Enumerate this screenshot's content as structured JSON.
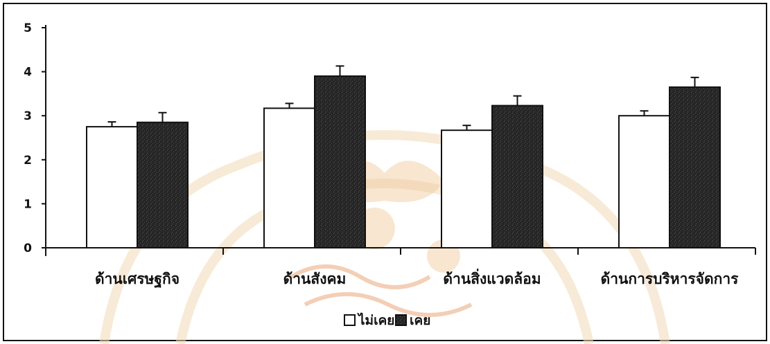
{
  "chart_data": {
    "type": "bar",
    "categories": [
      "ด้านเศรษฐกิจ",
      "ด้านสังคม",
      "ด้านสิ่งแวดล้อม",
      "ด้านการบริหารจัดการ"
    ],
    "series": [
      {
        "name": "ไม่เคย",
        "values": [
          2.75,
          3.17,
          2.67,
          3.0
        ],
        "errors": [
          0.11,
          0.11,
          0.11,
          0.11
        ],
        "fill": "#ffffff"
      },
      {
        "name": "เคย",
        "values": [
          2.85,
          3.9,
          3.23,
          3.65
        ],
        "errors": [
          0.22,
          0.23,
          0.22,
          0.22
        ],
        "fill": "#2b2b2b"
      }
    ],
    "yticks": [
      0,
      1,
      2,
      3,
      4,
      5
    ],
    "ylim": [
      0,
      5
    ],
    "legend_position": "bottom-center",
    "grid": false
  }
}
